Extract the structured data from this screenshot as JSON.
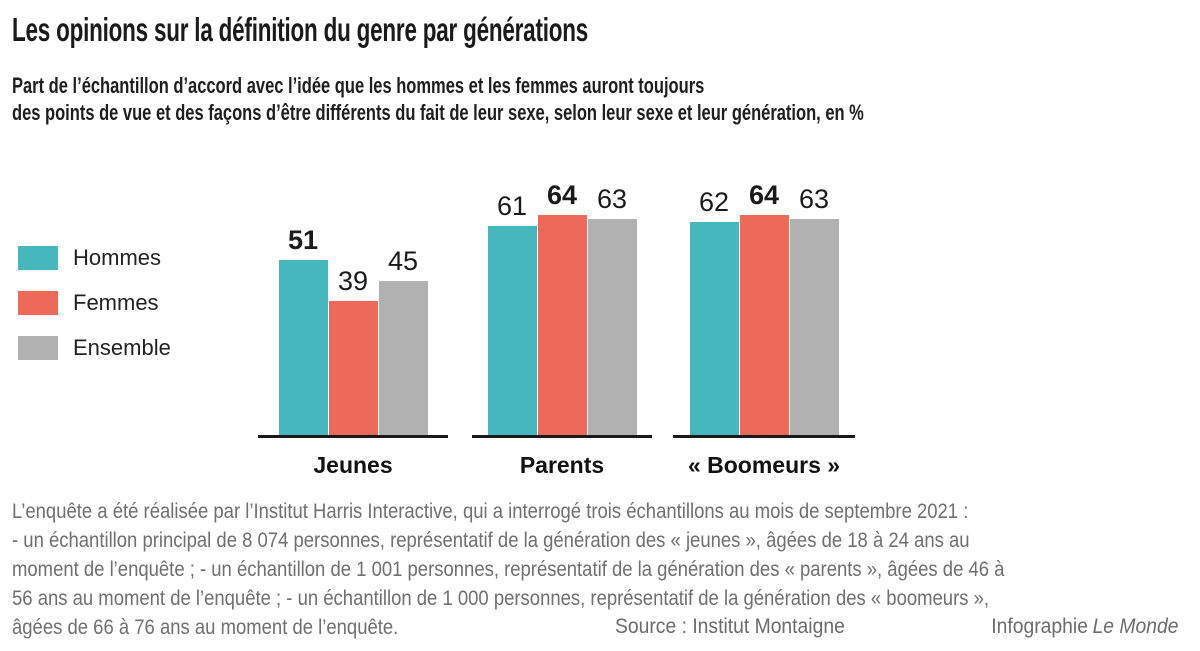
{
  "chart_data": {
    "type": "bar",
    "title": "Les opinions sur la définition du genre par générations",
    "subtitle_lines": [
      "Part de l’échantillon d’accord avec l’idée que les hommes et les femmes auront toujours",
      "des points de vue et des façons d’être différents du fait de leur sexe, selon leur sexe et leur génération, en %"
    ],
    "unit": "%",
    "categories": [
      "Jeunes",
      "Parents",
      "« Boomeurs »"
    ],
    "series": [
      {
        "name": "Hommes",
        "color": "#45b7bd",
        "values": [
          51,
          61,
          62
        ]
      },
      {
        "name": "Femmes",
        "color": "#ed695a",
        "values": [
          39,
          64,
          64
        ]
      },
      {
        "name": "Ensemble",
        "color": "#b1b1b1",
        "values": [
          45,
          63,
          63
        ]
      }
    ],
    "ylim": [
      0,
      70
    ],
    "grid": false,
    "legend_position": "left",
    "value_label_style": "highest value in each category shown in bold"
  },
  "footer": {
    "lines": [
      "L’enquête a été réalisée par l’Institut Harris Interactive, qui a interrogé trois échantillons au mois de septembre 2021 :",
      "- un échantillon principal de 8 074 personnes, représentatif de la génération des « jeunes », âgées de 18 à 24 ans au",
      "moment de l’enquête ; - un échantillon de 1 001 personnes, représentatif de la génération des « parents », âgées de 46 à",
      "56 ans au moment de l’enquête ; - un échantillon de 1 000 personnes, représentatif de la génération des « boomeurs »,",
      "âgées de 66 à 76 ans au moment de l’enquête."
    ],
    "source": "Source : Institut Montaigne",
    "credit_prefix": "Infographie",
    "credit_brand": "Le Monde"
  }
}
